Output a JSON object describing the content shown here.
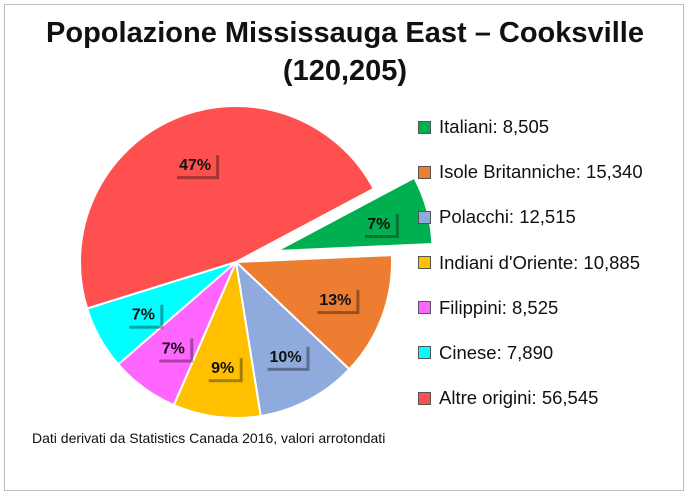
{
  "chart_data": {
    "type": "pie",
    "title_line1": "Popolazione Mississauga East – Cooksville",
    "title_line2": "(120,205)",
    "slices": [
      {
        "name": "Italiani",
        "value": 8505,
        "legend": "Italiani: 8,505",
        "percent_label": "7%",
        "color": "#00b050",
        "exploded": true
      },
      {
        "name": "Isole Britanniche",
        "value": 15340,
        "legend": "Isole Britanniche: 15,340",
        "percent_label": "13%",
        "color": "#ed7d31",
        "exploded": false
      },
      {
        "name": "Polacchi",
        "value": 12515,
        "legend": "Polacchi: 12,515",
        "percent_label": "10%",
        "color": "#8faadc",
        "exploded": false
      },
      {
        "name": "Indiani d'Oriente",
        "value": 10885,
        "legend": "Indiani d'Oriente: 10,885",
        "percent_label": "9%",
        "color": "#ffc000",
        "exploded": false
      },
      {
        "name": "Filippini",
        "value": 8525,
        "legend": "Filippini: 8,525",
        "percent_label": "7%",
        "color": "#ff66ff",
        "exploded": false
      },
      {
        "name": "Cinese",
        "value": 7890,
        "legend": "Cinese: 7,890",
        "percent_label": "7%",
        "color": "#00ffff",
        "exploded": false
      },
      {
        "name": "Altre origini",
        "value": 56545,
        "legend": "Altre origini: 56,545",
        "percent_label": "47%",
        "color": "#ff5050",
        "exploded": false
      }
    ],
    "legend_position": "right"
  },
  "footer": {
    "note": "Dati derivati da Statistics Canada 2016, valori arrotondati"
  }
}
